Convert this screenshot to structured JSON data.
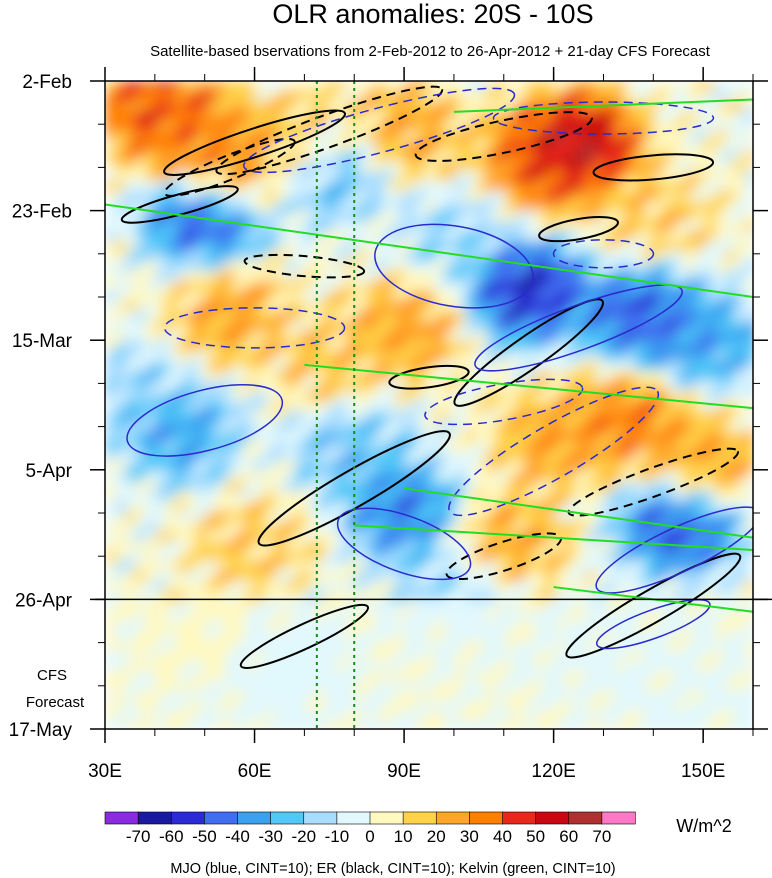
{
  "chart_data": {
    "type": "heatmap",
    "title": "OLR anomalies: 20S - 10S",
    "subtitle": "Satellite-based bservations from 2-Feb-2012 to 26-Apr-2012 + 21-day CFS Forecast",
    "x_axis": {
      "ticks": [
        30,
        60,
        90,
        120,
        150
      ],
      "tick_labels": [
        "30E",
        "60E",
        "90E",
        "120E",
        "150E"
      ],
      "range": [
        30,
        160
      ],
      "minor_step": 10
    },
    "y_axis": {
      "tick_labels": [
        "2-Feb",
        "23-Feb",
        "15-Mar",
        "5-Apr",
        "26-Apr",
        "17-May"
      ],
      "range": [
        "2-Feb-2012",
        "17-May-2012"
      ],
      "minor_step_days": 7,
      "direction": "time increases downward"
    },
    "observation_end": "26-Apr",
    "forecast_label": [
      "CFS",
      "Forecast"
    ],
    "reference_longitudes": [
      72.5,
      80
    ],
    "colorbar": {
      "units": "W/m^2",
      "levels": [
        -70,
        -60,
        -50,
        -40,
        -30,
        -20,
        -10,
        0,
        10,
        20,
        30,
        40,
        50,
        60,
        70
      ],
      "level_labels": [
        "-70",
        "-60",
        "-50",
        "-40",
        "-30",
        "-20",
        "-10",
        "0",
        "10",
        "20",
        "30",
        "40",
        "50",
        "60",
        "70"
      ],
      "colors": [
        "#8a2be2",
        "#1a1aa0",
        "#2b2bd6",
        "#3f6ff0",
        "#3aa0f0",
        "#50c8f8",
        "#a8ddff",
        "#e1f8fd",
        "#fff8bf",
        "#ffd24a",
        "#ffa62a",
        "#ff7f00",
        "#e8281a",
        "#c80810",
        "#b03030",
        "#ff78c8"
      ]
    },
    "contour_legend": "MJO (blue, CINT=10); ER (black, CINT=10); Kelvin (green, CINT=10)",
    "contour_colors": {
      "MJO": "#2a2acd",
      "ER": "#000000",
      "Kelvin": "#22dd22"
    },
    "anomaly_field_approx": [
      {
        "lon": 40,
        "day": 4,
        "value": 50
      },
      {
        "lon": 45,
        "day": 8,
        "value": 40
      },
      {
        "lon": 55,
        "day": 14,
        "value": 40
      },
      {
        "lon": 70,
        "day": 10,
        "value": 30
      },
      {
        "lon": 90,
        "day": 8,
        "value": 30
      },
      {
        "lon": 125,
        "day": 10,
        "value": 70
      },
      {
        "lon": 118,
        "day": 13,
        "value": 50
      },
      {
        "lon": 140,
        "day": 22,
        "value": 20
      },
      {
        "lon": 50,
        "day": 22,
        "value": -60
      },
      {
        "lon": 75,
        "day": 14,
        "value": -40
      },
      {
        "lon": 100,
        "day": 25,
        "value": -20
      },
      {
        "lon": 115,
        "day": 34,
        "value": -70
      },
      {
        "lon": 138,
        "day": 38,
        "value": -60
      },
      {
        "lon": 150,
        "day": 42,
        "value": -40
      },
      {
        "lon": 55,
        "day": 38,
        "value": 30
      },
      {
        "lon": 90,
        "day": 40,
        "value": 30
      },
      {
        "lon": 75,
        "day": 45,
        "value": 20
      },
      {
        "lon": 35,
        "day": 50,
        "value": -20
      },
      {
        "lon": 45,
        "day": 57,
        "value": -40
      },
      {
        "lon": 80,
        "day": 60,
        "value": -30
      },
      {
        "lon": 90,
        "day": 70,
        "value": -50
      },
      {
        "lon": 120,
        "day": 58,
        "value": 30
      },
      {
        "lon": 135,
        "day": 55,
        "value": 40
      },
      {
        "lon": 150,
        "day": 62,
        "value": 30
      },
      {
        "lon": 60,
        "day": 75,
        "value": 20
      },
      {
        "lon": 110,
        "day": 75,
        "value": 30
      },
      {
        "lon": 145,
        "day": 72,
        "value": -60
      },
      {
        "lon": 100,
        "day": 82,
        "value": -20
      },
      {
        "lon": 50,
        "day": 90,
        "value": 10
      },
      {
        "lon": 65,
        "day": 95,
        "value": -20
      },
      {
        "lon": 130,
        "day": 92,
        "value": -10
      },
      {
        "lon": 150,
        "day": 100,
        "value": -10
      }
    ]
  }
}
